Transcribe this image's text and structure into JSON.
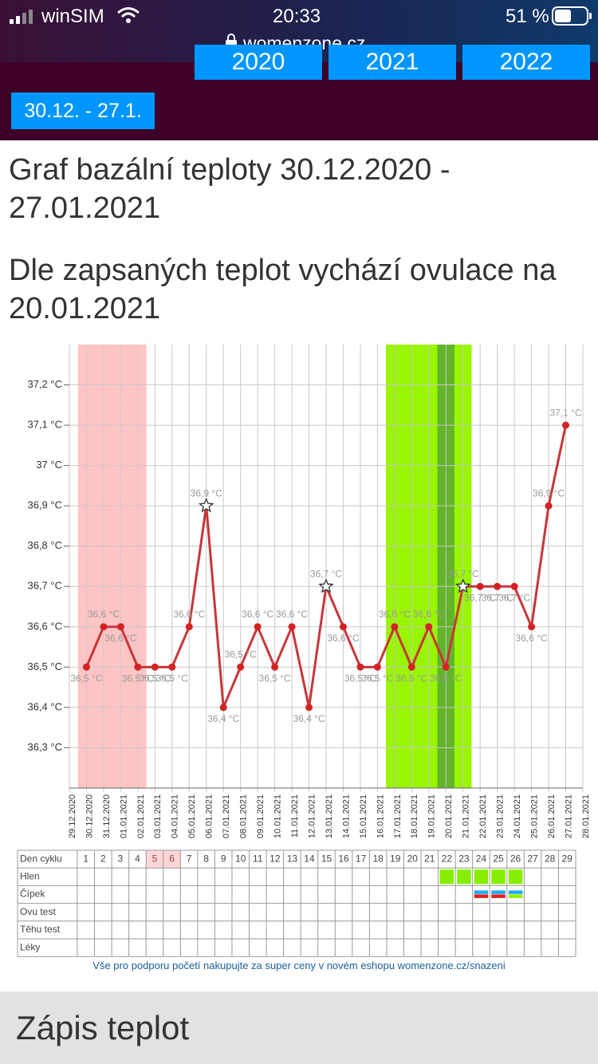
{
  "status_bar": {
    "carrier": "winSIM",
    "time": "20:33",
    "battery": "51 %",
    "url": "womenzone.cz"
  },
  "nav": {
    "years": [
      "2020",
      "2021",
      "2022"
    ],
    "cycle": "30.12. - 27.1."
  },
  "title": "Graf bazální teploty 30.12.2020 - 27.01.2021",
  "subtitle": "Dle zapsaných teplot vychází ovulace na 20.01.2021",
  "chart_data": {
    "type": "line",
    "categories": [
      "29.12.2020",
      "30.12.2020",
      "31.12.2020",
      "01.01.2021",
      "02.01.2021",
      "03.01.2021",
      "04.01.2021",
      "05.01.2021",
      "06.01.2021",
      "07.01.2021",
      "08.01.2021",
      "09.01.2021",
      "10.01.2021",
      "11.01.2021",
      "12.01.2021",
      "13.01.2021",
      "14.01.2021",
      "15.01.2021",
      "16.01.2021",
      "17.01.2021",
      "18.01.2021",
      "19.01.2021",
      "20.01.2021",
      "21.01.2021",
      "22.01.2021",
      "23.01.2021",
      "24.01.2021",
      "25.01.2021",
      "26.01.2021",
      "27.01.2021",
      "28.01.2021"
    ],
    "values": [
      null,
      36.5,
      36.6,
      36.6,
      36.5,
      36.5,
      36.5,
      36.6,
      36.9,
      36.4,
      36.5,
      36.6,
      36.5,
      36.6,
      36.4,
      36.7,
      36.6,
      36.5,
      36.5,
      36.6,
      36.5,
      36.6,
      36.5,
      36.7,
      36.7,
      36.7,
      36.7,
      36.6,
      36.9,
      37.1,
      null
    ],
    "value_labels": [
      null,
      "36,5 °C",
      "36,6 °C",
      "36,6 °C",
      "36,5 °C",
      "36,5 °C",
      "36,5 °C",
      "36,6 °C",
      "36,9 °C",
      "36,4 °C",
      "36,5 °C",
      "36,6 °C",
      "36,5 °C",
      "36,6 °C",
      "36,4 °C",
      "36,7 °C",
      "36,6 °C",
      "36,5 °C",
      "36,5 °C",
      "36,6 °C",
      "36,5 °C",
      "36,6 °C",
      "36,5 °C",
      "36,7 °C",
      "36,7 °C",
      "36,7 °C",
      "36,7 °C",
      "36,6 °C",
      "36,9 °C",
      "37,1 °C",
      null
    ],
    "color": "#c8363a",
    "star_indices": [
      8,
      15,
      23
    ],
    "bands": [
      {
        "from": 1,
        "to": 4,
        "color": "#ffc4c4"
      },
      {
        "from": 19,
        "to": 23,
        "color": "#99f500"
      },
      {
        "from": 22,
        "to": 22,
        "color": "#62b52a"
      }
    ],
    "ylim": [
      36.2,
      37.3
    ],
    "yticks": [
      {
        "value": 36.3,
        "label": "36,3 °C"
      },
      {
        "value": 36.4,
        "label": "36,4 °C"
      },
      {
        "value": 36.5,
        "label": "36,5 °C"
      },
      {
        "value": 36.6,
        "label": "36,6 °C"
      },
      {
        "value": 36.7,
        "label": "36,7 °C"
      },
      {
        "value": 36.8,
        "label": "36,8 °C"
      },
      {
        "value": 36.9,
        "label": "36,9 °C"
      },
      {
        "value": 37,
        "label": "37 °C"
      },
      {
        "value": 37.1,
        "label": "37,1 °C"
      },
      {
        "value": 37.2,
        "label": "37,2 °C"
      }
    ],
    "grid": true
  },
  "cycle_table": {
    "row_labels": [
      "Den cyklu",
      "Hlen",
      "Čípek",
      "Ovu test",
      "Těhu test",
      "Léky"
    ],
    "days": [
      1,
      2,
      3,
      4,
      5,
      6,
      7,
      8,
      9,
      10,
      11,
      12,
      13,
      14,
      15,
      16,
      17,
      18,
      19,
      20,
      21,
      22,
      23,
      24,
      25,
      26,
      27,
      28,
      29
    ],
    "highlight_days": [
      5,
      6
    ],
    "hlen_days": [
      22,
      23,
      24,
      25,
      26
    ],
    "cipek": [
      {
        "day": 24,
        "colors": [
          "#22aaee",
          "#e02020"
        ]
      },
      {
        "day": 25,
        "colors": [
          "#22aaee",
          "#e02020"
        ]
      },
      {
        "day": 26,
        "colors": [
          "#22aaee",
          "#99ee00"
        ]
      }
    ]
  },
  "footer_note": "Vše pro podporu početí nakupujte za super ceny v novém eshopu womenzone.cz/snazeni",
  "section_title": "Zápis teplot"
}
